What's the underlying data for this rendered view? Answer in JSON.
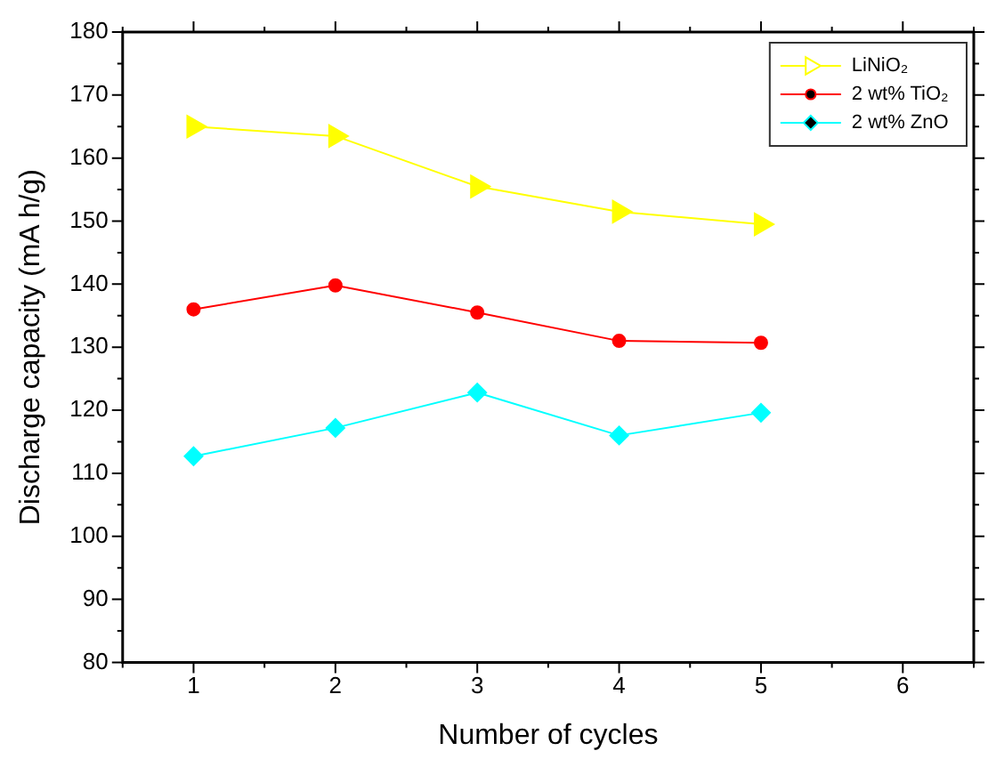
{
  "chart_data": {
    "type": "line",
    "xlabel": "Number of cycles",
    "ylabel": "Discharge capacity (mA h/g)",
    "x": [
      1,
      2,
      3,
      4,
      5
    ],
    "series": [
      {
        "name": "LiNiO₂",
        "color": "#ffff00",
        "marker": "triangle",
        "values": [
          165,
          163.5,
          155.5,
          151.5,
          149.5
        ]
      },
      {
        "name": "2 wt% TiO₂",
        "color": "#ff0000",
        "marker": "circle",
        "values": [
          136,
          139.8,
          135.5,
          131,
          130.7
        ]
      },
      {
        "name": "2 wt% ZnO",
        "color": "#00ffff",
        "marker": "diamond",
        "values": [
          112.7,
          117.2,
          122.8,
          116,
          119.6
        ]
      }
    ],
    "xlim": [
      0.5,
      6.5
    ],
    "xticks": [
      1,
      2,
      3,
      4,
      5,
      6
    ],
    "ylim": [
      80,
      180
    ],
    "yticks": [
      80,
      90,
      100,
      110,
      120,
      130,
      140,
      150,
      160,
      170,
      180
    ],
    "grid": false,
    "legend": "top right",
    "line_style": "solid"
  }
}
